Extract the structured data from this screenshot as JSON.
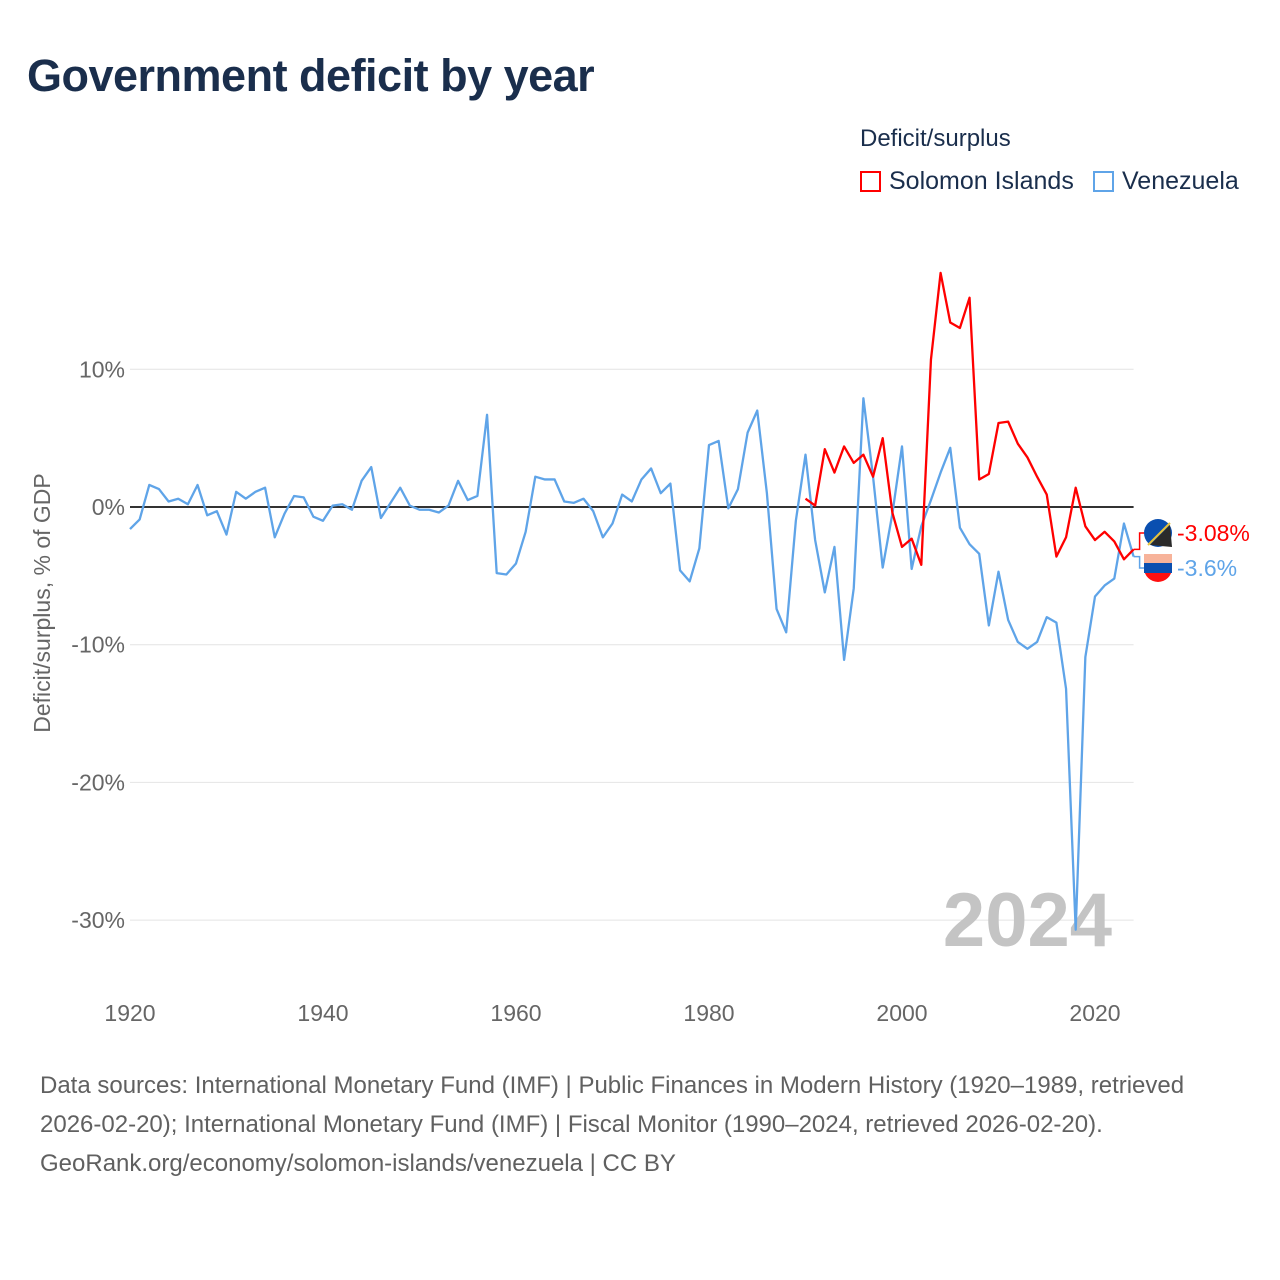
{
  "title": "Government deficit by year",
  "footer": {
    "sources": "Data sources: International Monetary Fund (IMF) | Public Finances in Modern History (1920–1989, retrieved 2026-02-20); International Monetary Fund (IMF) | Fiscal Monitor (1990–2024, retrieved 2026-02-20).",
    "credit": "GeoRank.org/economy/solomon-islands/venezuela | CC BY"
  },
  "chart_data": {
    "type": "line",
    "title": "Government deficit by year",
    "xlabel": "",
    "ylabel": "Deficit/surplus, % of GDP",
    "xlim": [
      1920,
      2024
    ],
    "ylim": [
      -33,
      18
    ],
    "xticks": [
      1920,
      1940,
      1960,
      1980,
      2000,
      2020
    ],
    "yticks": [
      10,
      0,
      -10,
      -20,
      -30
    ],
    "ytick_labels": [
      "10%",
      "0%",
      "-10%",
      "-20%",
      "-30%"
    ],
    "legend_title": "Deficit/surplus",
    "legend_position": "top-right",
    "year_watermark": "2024",
    "series": [
      {
        "name": "Solomon Islands",
        "color": "#ff0000",
        "end_label": "-3.08%",
        "start_year": 1990,
        "values": [
          0.6,
          0.1,
          4.2,
          2.5,
          4.4,
          3.2,
          3.8,
          2.2,
          5.0,
          -0.4,
          -2.9,
          -2.3,
          -4.2,
          10.7,
          17.0,
          13.4,
          13.0,
          15.2,
          2.0,
          2.4,
          6.1,
          6.2,
          4.6,
          3.6,
          2.2,
          0.9,
          -3.6,
          -2.2,
          1.4,
          -1.4,
          -2.4,
          -1.8,
          -2.5,
          -3.8,
          -3.08
        ]
      },
      {
        "name": "Venezuela",
        "color": "#5fa4e8",
        "end_label": "-3.6%",
        "start_year": 1920,
        "values": [
          -1.6,
          -0.9,
          1.6,
          1.3,
          0.4,
          0.6,
          0.2,
          1.6,
          -0.6,
          -0.3,
          -2.0,
          1.1,
          0.6,
          1.1,
          1.4,
          -2.2,
          -0.5,
          0.8,
          0.7,
          -0.7,
          -1.0,
          0.1,
          0.2,
          -0.2,
          1.9,
          2.9,
          -0.8,
          0.3,
          1.4,
          0.1,
          -0.2,
          -0.2,
          -0.4,
          0.1,
          1.9,
          0.5,
          0.8,
          6.7,
          -4.8,
          -4.9,
          -4.1,
          -1.8,
          2.2,
          2.0,
          2.0,
          0.4,
          0.3,
          0.6,
          -0.3,
          -2.2,
          -1.2,
          0.9,
          0.4,
          2.0,
          2.8,
          1.0,
          1.7,
          -4.6,
          -5.4,
          -3.0,
          4.5,
          4.8,
          -0.1,
          1.3,
          5.4,
          7.0,
          1.0,
          -7.4,
          -9.1,
          -1.0,
          3.8,
          -2.4,
          -6.2,
          -2.9,
          -11.1,
          -5.9,
          7.9,
          2.2,
          -4.4,
          -0.5,
          4.4,
          -4.5,
          -1.4,
          0.5,
          2.5,
          4.3,
          -1.5,
          -2.7,
          -3.4,
          -8.6,
          -4.7,
          -8.2,
          -9.8,
          -10.3,
          -9.8,
          -8.0,
          -8.4,
          -13.2,
          -30.7,
          -10.9,
          -6.5,
          -5.7,
          -5.2,
          -1.2,
          -3.6
        ]
      }
    ]
  }
}
